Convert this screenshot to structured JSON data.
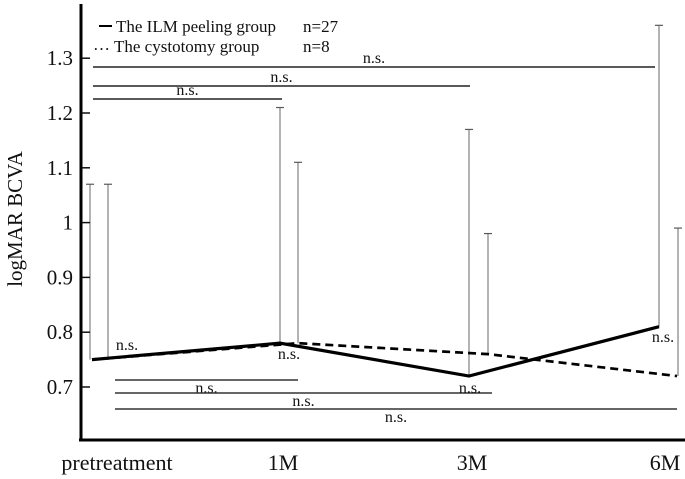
{
  "figure": {
    "ylabel": "logMAR BCVA",
    "ns_text": "n.s.",
    "legend": [
      {
        "marker": "dash-icon",
        "label": "The ILM peeling group",
        "count_label": "n=27"
      },
      {
        "marker": "dots-icon",
        "label": "The cystotomy group",
        "count_label": "n=8"
      }
    ]
  },
  "chart_data": {
    "type": "line",
    "categories": [
      "pretreatment",
      "1M",
      "3M",
      "6M"
    ],
    "xlabel": "",
    "ylabel": "logMAR BCVA",
    "ylim": [
      0.6,
      1.4
    ],
    "yticks": [
      0.7,
      0.8,
      0.9,
      1,
      1.1,
      1.2,
      1.3
    ],
    "grid": false,
    "legend_position": "top-left",
    "series": [
      {
        "name": "The ILM peeling group",
        "count_label": "n=27",
        "line_style": "solid",
        "values": [
          0.75,
          0.78,
          0.72,
          0.81
        ],
        "upper_error": [
          1.07,
          1.21,
          1.17,
          1.36
        ]
      },
      {
        "name": "The cystotomy group",
        "count_label": "n=8",
        "line_style": "dashed",
        "values": [
          0.75,
          0.78,
          0.76,
          0.72
        ],
        "upper_error": [
          1.07,
          1.11,
          0.98,
          0.99
        ]
      }
    ],
    "comparisons_top": [
      {
        "label": "n.s.",
        "from": "pretreatment",
        "to": "6M"
      },
      {
        "label": "n.s.",
        "from": "pretreatment",
        "to": "3M"
      },
      {
        "label": "n.s.",
        "from": "pretreatment",
        "to": "1M"
      }
    ],
    "comparisons_bottom": [
      {
        "label": "n.s.",
        "from": "pretreatment",
        "to": "1M"
      },
      {
        "label": "n.s.",
        "from": "pretreatment",
        "to": "3M"
      },
      {
        "label": "n.s.",
        "from": "pretreatment",
        "to": "6M"
      }
    ],
    "point_labels": [
      {
        "label": "n.s.",
        "at": "pretreatment"
      },
      {
        "label": "n.s.",
        "at": "1M"
      },
      {
        "label": "n.s.",
        "at": "3M"
      },
      {
        "label": "n.s.",
        "at": "6M"
      }
    ]
  }
}
